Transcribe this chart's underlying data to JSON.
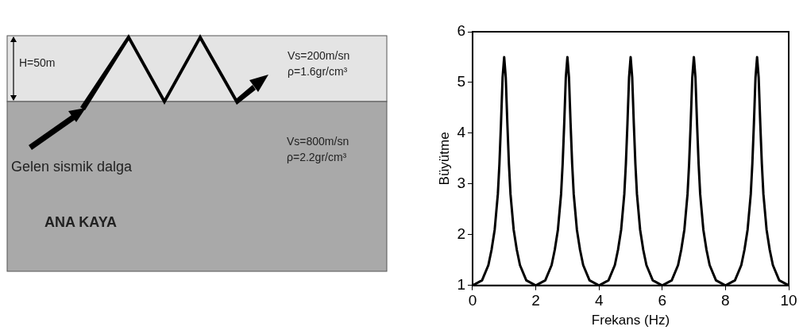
{
  "chart_data": [
    {
      "type": "other",
      "annotations": [
        "H=50m",
        "Vs=200m/sn",
        "ρ=1.6gr/cm³",
        "Vs=800m/sn",
        "ρ=2.2gr/cm³",
        "Gelen sismik dalga",
        "ANA KAYA"
      ]
    },
    {
      "type": "line",
      "xlabel": "Frekans (Hz)",
      "ylabel": "Büyütme",
      "xlim": [
        0,
        10
      ],
      "xticks": [
        0,
        2,
        4,
        6,
        8,
        10
      ],
      "ylim": [
        1,
        6
      ],
      "yticks": [
        1,
        2,
        3,
        4,
        5,
        6
      ],
      "grid": false,
      "legend": false,
      "marker": "none",
      "line_style": "solid",
      "x": [
        0,
        0.3,
        0.5,
        0.6,
        0.7,
        0.8,
        0.85,
        0.9,
        0.95,
        1,
        1.05,
        1.1,
        1.15,
        1.2,
        1.3,
        1.4,
        1.5,
        1.7,
        2,
        2.3,
        2.5,
        2.6,
        2.7,
        2.8,
        2.85,
        2.9,
        2.95,
        3,
        3.05,
        3.1,
        3.15,
        3.2,
        3.3,
        3.4,
        3.5,
        3.7,
        4,
        4.3,
        4.5,
        4.6,
        4.7,
        4.8,
        4.85,
        4.9,
        4.95,
        5,
        5.05,
        5.1,
        5.15,
        5.2,
        5.3,
        5.4,
        5.5,
        5.7,
        6,
        6.3,
        6.5,
        6.6,
        6.7,
        6.8,
        6.85,
        6.9,
        6.95,
        7,
        7.05,
        7.1,
        7.15,
        7.2,
        7.3,
        7.4,
        7.5,
        7.7,
        8,
        8.3,
        8.5,
        8.6,
        8.7,
        8.8,
        8.85,
        8.9,
        8.95,
        9,
        9.05,
        9.1,
        9.15,
        9.2,
        9.3,
        9.4,
        9.5,
        9.7,
        10
      ],
      "series": [
        {
          "color": "#000000",
          "values": [
            1,
            1.1,
            1.4,
            1.7,
            2.1,
            2.8,
            3.4,
            4.2,
            5.1,
            5.5,
            5.1,
            4.2,
            3.4,
            2.8,
            2.1,
            1.7,
            1.4,
            1.1,
            1,
            1.1,
            1.4,
            1.7,
            2.1,
            2.8,
            3.4,
            4.2,
            5.1,
            5.5,
            5.1,
            4.2,
            3.4,
            2.8,
            2.1,
            1.7,
            1.4,
            1.1,
            1,
            1.1,
            1.4,
            1.7,
            2.1,
            2.8,
            3.4,
            4.2,
            5.1,
            5.5,
            5.1,
            4.2,
            3.4,
            2.8,
            2.1,
            1.7,
            1.4,
            1.1,
            1,
            1.1,
            1.4,
            1.7,
            2.1,
            2.8,
            3.4,
            4.2,
            5.1,
            5.5,
            5.1,
            4.2,
            3.4,
            2.8,
            2.1,
            1.7,
            1.4,
            1.1,
            1,
            1.1,
            1.4,
            1.7,
            2.1,
            2.8,
            3.4,
            4.2,
            5.1,
            5.5,
            5.1,
            4.2,
            3.4,
            2.8,
            2.1,
            1.7,
            1.4,
            1.1,
            1
          ]
        }
      ]
    }
  ]
}
